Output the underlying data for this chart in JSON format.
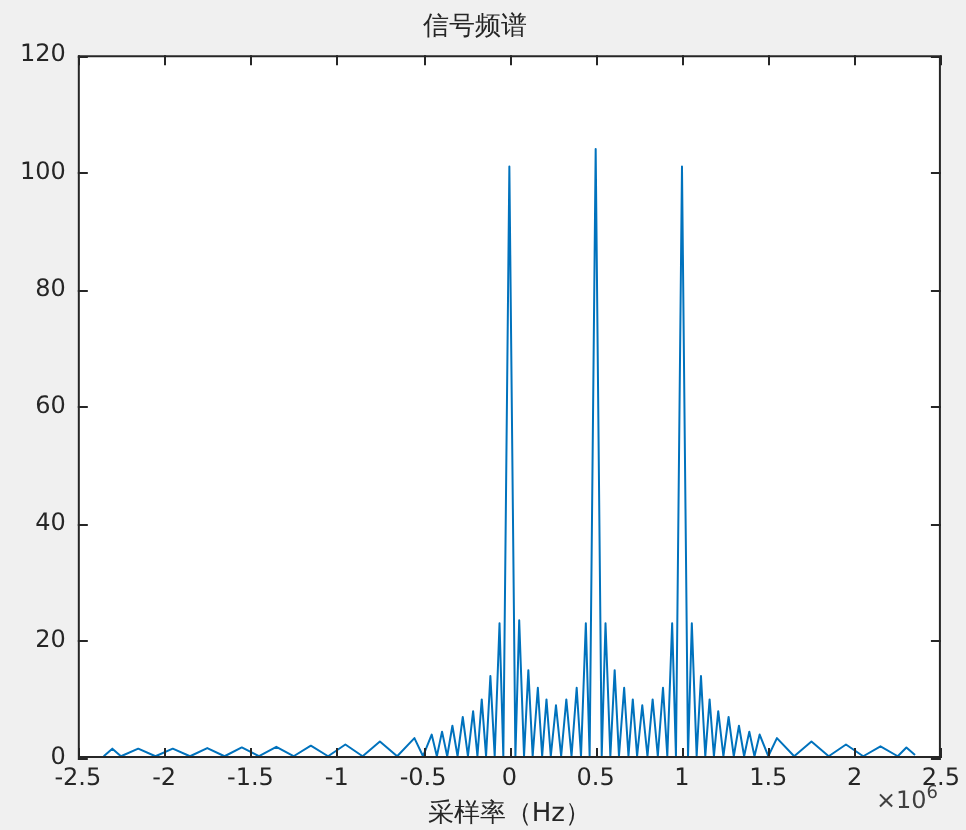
{
  "chart_data": {
    "type": "line",
    "title": "信号频谱",
    "xlabel": "采样率（Hz）",
    "annotations": [
      "×10$^{6}$"
    ],
    "xlim": [
      -2.5,
      2.5
    ],
    "xticks": [
      -2.5,
      -2,
      -1.5,
      -1,
      -0.5,
      0,
      0.5,
      1,
      1.5,
      2,
      2.5
    ],
    "ylim": [
      0,
      120
    ],
    "yticks": [
      0,
      20,
      40,
      60,
      80,
      100,
      120
    ],
    "grid": false,
    "legend": false,
    "series": [
      {
        "color": "#0072bd",
        "x": [
          -2.35,
          -2.3,
          -2.25,
          -2.15,
          -2.05,
          -1.95,
          -1.85,
          -1.75,
          -1.65,
          -1.55,
          -1.45,
          -1.35,
          -1.25,
          -1.15,
          -1.05,
          -0.95,
          -0.85,
          -0.75,
          -0.65,
          -0.55,
          -0.5,
          -0.45,
          -0.42,
          -0.39,
          -0.36,
          -0.33,
          -0.3,
          -0.27,
          -0.24,
          -0.21,
          -0.185,
          -0.16,
          -0.135,
          -0.11,
          -0.085,
          -0.057,
          -0.035,
          0,
          0.035,
          0.057,
          0.085,
          0.11,
          0.135,
          0.165,
          0.19,
          0.215,
          0.24,
          0.27,
          0.3,
          0.33,
          0.36,
          0.39,
          0.415,
          0.443,
          0.465,
          0.5,
          0.535,
          0.557,
          0.585,
          0.61,
          0.635,
          0.665,
          0.69,
          0.715,
          0.74,
          0.77,
          0.8,
          0.83,
          0.86,
          0.89,
          0.915,
          0.943,
          0.965,
          1,
          1.035,
          1.057,
          1.085,
          1.11,
          1.135,
          1.16,
          1.185,
          1.21,
          1.24,
          1.27,
          1.3,
          1.33,
          1.36,
          1.39,
          1.42,
          1.45,
          1.5,
          1.55,
          1.65,
          1.75,
          1.85,
          1.95,
          2.05,
          2.15,
          2.25,
          2.3,
          2.35
        ],
        "values": [
          0.3,
          1.6,
          0.3,
          1.6,
          0.3,
          1.6,
          0.3,
          1.7,
          0.3,
          1.8,
          0.3,
          1.9,
          0.3,
          2.1,
          0.3,
          2.3,
          0.3,
          2.8,
          0.3,
          3.4,
          0.3,
          4,
          0.3,
          4.5,
          0.3,
          5.5,
          0.3,
          7,
          0.3,
          8,
          0.3,
          10,
          0.3,
          14,
          0.3,
          23,
          0.3,
          101,
          0.3,
          23.5,
          0.3,
          15,
          0.3,
          12,
          0.3,
          10,
          0.3,
          9,
          0.3,
          10,
          0.3,
          12,
          0.3,
          23,
          0.3,
          104,
          0.3,
          23,
          0.3,
          15,
          0.3,
          12,
          0.3,
          10,
          0.3,
          9,
          0.3,
          10,
          0.3,
          12,
          0.3,
          23,
          0.3,
          101,
          0.3,
          23,
          0.3,
          14,
          0.3,
          10,
          0.3,
          8,
          0.3,
          7,
          0.3,
          5.5,
          0.3,
          4.5,
          0.3,
          4,
          0.3,
          3.4,
          0.3,
          2.8,
          0.3,
          2.3,
          0.3,
          2,
          0.3,
          1.8,
          0.5
        ]
      }
    ]
  }
}
